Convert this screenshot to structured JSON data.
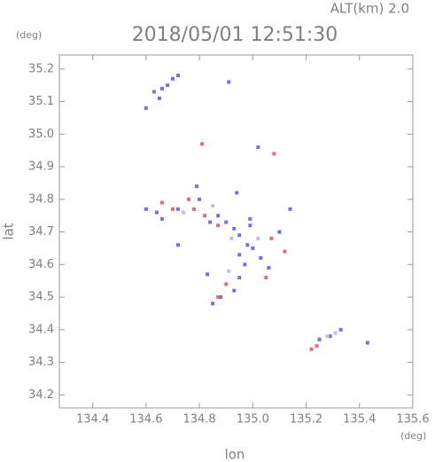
{
  "chart_data": {
    "type": "scatter",
    "title": "2018/05/01 12:51:30",
    "subtitle": "ALT(km) 2.0",
    "y_unit": "(deg)",
    "x_unit": "(deg)",
    "xlabel": "lon",
    "ylabel": "lat",
    "xlim": [
      134.275,
      135.6
    ],
    "ylim": [
      34.16,
      35.243
    ],
    "xticks": [
      134.4,
      134.6,
      134.8,
      {
        "value": 135,
        "label": "135.0"
      },
      135.2,
      135.4,
      135.6
    ],
    "yticks": [
      34.2,
      34.3,
      34.4,
      34.5,
      34.6,
      34.7,
      34.8,
      34.9,
      {
        "value": 35,
        "label": "35.0"
      },
      35.1,
      35.2
    ],
    "series": [
      {
        "color": "#6f6ff0",
        "x": [
          134.63,
          134.66,
          134.68,
          134.6,
          134.65,
          134.7,
          134.72,
          134.91,
          135.02,
          134.6,
          134.64,
          134.66,
          134.72,
          134.79,
          134.8,
          134.84,
          134.87,
          134.9,
          134.93,
          134.95,
          134.98,
          135.0,
          135.03,
          134.99,
          134.83,
          135.14,
          135.1,
          134.94,
          135.06,
          134.95,
          134.85,
          134.88,
          134.93,
          134.95,
          134.97,
          135.29,
          135.33,
          135.43,
          135.25,
          134.72,
          134.99
        ],
        "y": [
          35.13,
          35.14,
          35.15,
          35.08,
          35.11,
          35.17,
          35.18,
          35.16,
          34.96,
          34.77,
          34.76,
          34.74,
          34.77,
          34.84,
          34.8,
          34.73,
          34.75,
          34.73,
          34.71,
          34.69,
          34.66,
          34.65,
          34.62,
          34.72,
          34.57,
          34.77,
          34.7,
          34.82,
          34.59,
          34.63,
          34.48,
          34.5,
          34.52,
          34.56,
          34.6,
          34.38,
          34.4,
          34.36,
          34.37,
          34.66,
          34.74
        ]
      },
      {
        "color": "#e86a7a",
        "x": [
          134.66,
          134.7,
          134.78,
          134.82,
          134.87,
          134.76,
          135.07,
          135.12,
          135.05,
          134.81,
          135.08,
          135.24,
          135.22,
          134.9,
          134.87
        ],
        "y": [
          34.79,
          34.77,
          34.77,
          34.75,
          34.72,
          34.8,
          34.68,
          34.64,
          34.56,
          34.97,
          34.94,
          34.35,
          34.34,
          34.54,
          34.5
        ]
      },
      {
        "color": "#c9b8e8",
        "x": [
          134.74,
          134.85,
          134.92,
          135.28,
          135.31,
          134.91,
          135.02
        ],
        "y": [
          34.76,
          34.78,
          34.68,
          34.38,
          34.39,
          34.58,
          34.68
        ]
      }
    ]
  }
}
